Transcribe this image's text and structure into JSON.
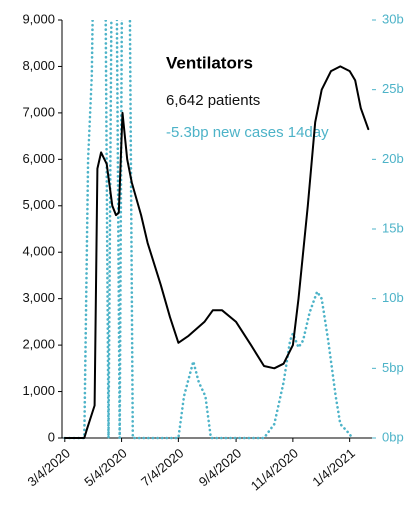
{
  "chart_data": {
    "type": "line",
    "annotations": {
      "title": "Ventilators",
      "patients": "6,642 patients",
      "cases": "-5.3bp new cases 14day"
    },
    "xlim": [
      "3/1/2020",
      "1/28/2021"
    ],
    "xticks": [
      "3/4/2020",
      "5/4/2020",
      "7/4/2020",
      "9/4/2020",
      "11/4/2020",
      "1/4/2021"
    ],
    "ylim": [
      0,
      9000
    ],
    "yticks": [
      0,
      {
        "value": 1000,
        "label": "1,000"
      },
      {
        "value": 2000,
        "label": "2,000"
      },
      {
        "value": 3000,
        "label": "3,000"
      },
      {
        "value": 4000,
        "label": "4,000"
      },
      {
        "value": 5000,
        "label": "5,000"
      },
      {
        "value": 6000,
        "label": "6,000"
      },
      {
        "value": 7000,
        "label": "7,000"
      },
      {
        "value": 8000,
        "label": "8,000"
      },
      {
        "value": 9000,
        "label": "9,000"
      }
    ],
    "y2lim": [
      0,
      30
    ],
    "y2ticks": [
      {
        "value": 0,
        "label": "0bp"
      },
      {
        "value": 5,
        "label": "5bp"
      },
      {
        "value": 10,
        "label": "10b"
      },
      {
        "value": 15,
        "label": "15b"
      },
      {
        "value": 20,
        "label": "20b"
      },
      {
        "value": 25,
        "label": "25b"
      },
      {
        "value": 30,
        "label": "30b"
      }
    ],
    "series": [
      {
        "name": "Ventilators",
        "color": "#000000",
        "style": "solid",
        "x": [
          "3/4/2020",
          "3/25/2020",
          "3/28/2020",
          "4/5/2020",
          "4/8/2020",
          "4/12/2020",
          "4/18/2020",
          "4/24/2020",
          "4/28/2020",
          "5/1/2020",
          "5/5/2020",
          "5/10/2020",
          "5/15/2020",
          "5/25/2020",
          "6/1/2020",
          "6/15/2020",
          "6/25/2020",
          "7/4/2020",
          "7/15/2020",
          "8/1/2020",
          "8/10/2020",
          "8/20/2020",
          "9/4/2020",
          "9/20/2020",
          "10/4/2020",
          "10/15/2020",
          "10/25/2020",
          "11/4/2020",
          "11/10/2020",
          "11/20/2020",
          "11/28/2020",
          "12/5/2020",
          "12/15/2020",
          "12/25/2020",
          "1/4/2021",
          "1/10/2021",
          "1/16/2021",
          "1/24/2021"
        ],
        "values": [
          0,
          0,
          200,
          700,
          5800,
          6150,
          5900,
          5000,
          4800,
          4850,
          7000,
          6000,
          5500,
          4800,
          4200,
          3300,
          2600,
          2050,
          2200,
          2500,
          2750,
          2750,
          2500,
          2000,
          1550,
          1500,
          1600,
          2000,
          3000,
          5000,
          6800,
          7500,
          7900,
          8000,
          7900,
          7700,
          7100,
          6650
        ]
      },
      {
        "name": "New cases 14day",
        "color": "#4db3c8",
        "style": "dotted",
        "axis": "y2",
        "x": [
          "3/4/2020",
          "3/25/2020",
          "3/29/2020",
          "4/2/2020",
          "4/5/2020",
          "4/16/2020",
          "4/20/2020",
          "4/24/2020",
          "4/28/2020",
          "5/2/2020",
          "5/5/2020",
          "5/12/2020",
          "5/16/2020",
          "7/4/2020",
          "7/10/2020",
          "7/20/2020",
          "7/26/2020",
          "8/2/2020",
          "8/8/2020",
          "10/4/2020",
          "10/15/2020",
          "10/25/2020",
          "11/1/2020",
          "11/4/2020",
          "11/10/2020",
          "11/15/2020",
          "11/22/2020",
          "11/30/2020",
          "12/5/2020",
          "12/12/2020",
          "12/20/2020",
          "12/25/2020",
          "1/1/2021",
          "1/7/2021"
        ],
        "values": [
          0,
          0,
          20,
          26,
          40,
          40,
          0,
          40,
          40,
          0,
          40,
          40,
          0,
          0,
          3,
          5.5,
          4,
          3,
          0,
          0,
          1,
          4,
          7,
          7.5,
          6.5,
          7,
          9,
          10.5,
          10,
          7,
          3,
          1,
          0.5,
          0
        ]
      }
    ]
  }
}
